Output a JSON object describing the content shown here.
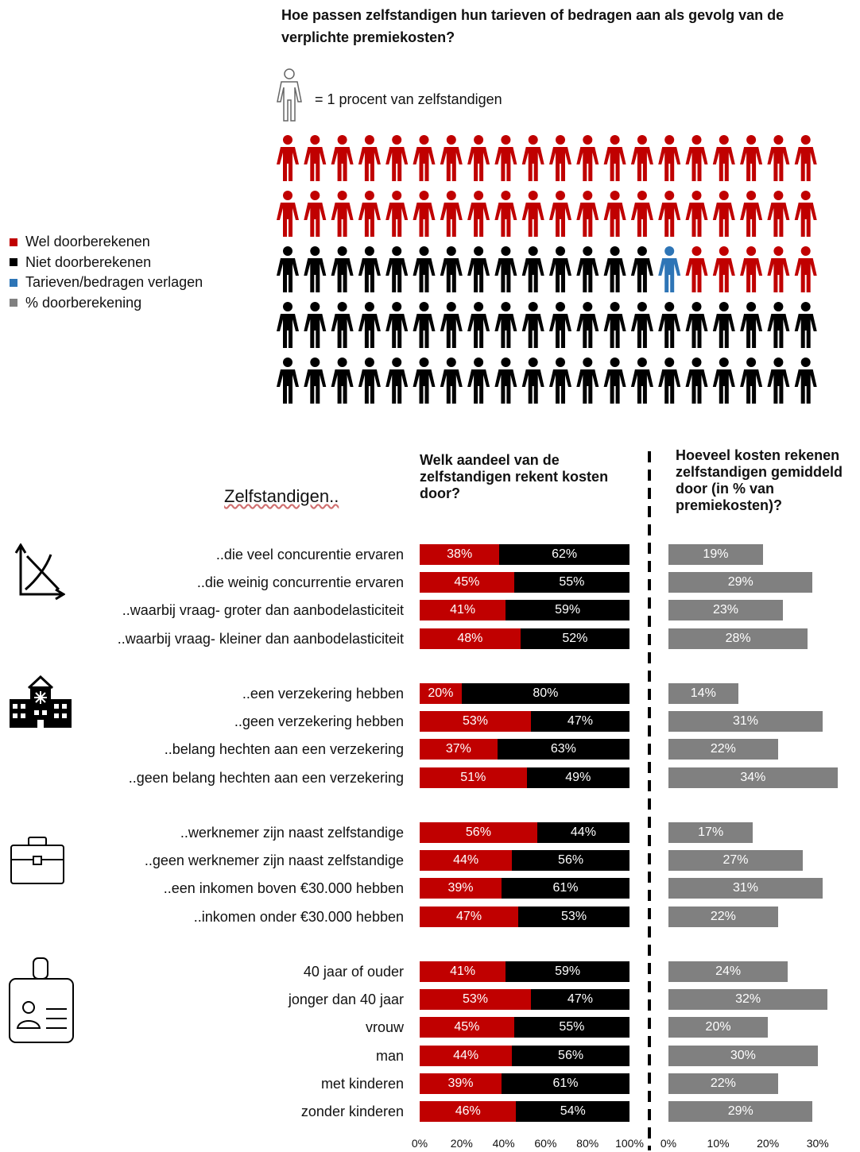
{
  "title": "Hoe passen zelfstandigen hun tarieven of bedragen aan als gevolg van de verplichte premiekosten?",
  "unit_text": "= 1 procent van zelfstandigen",
  "legend": [
    {
      "label": "Wel doorberekenen",
      "color": "#c00000"
    },
    {
      "label": "Niet doorberekenen",
      "color": "#000000"
    },
    {
      "label": "Tarieven/bedragen verlagen",
      "color": "#2e75b6"
    },
    {
      "label": "% doorberekening",
      "color": "#808080"
    }
  ],
  "zelf_label": "Zelfstandigen..",
  "left_header": "Welk aandeel van de zelfstandigen rekent kosten door?",
  "right_header": "Hoeveel kosten rekenen zelfstandigen gemiddeld door (in % van premiekosten)?",
  "colors": {
    "red": "#c00000",
    "black": "#000000",
    "blue": "#2e75b6",
    "gray": "#808080"
  },
  "chart_data": [
    {
      "type": "pictogram",
      "unit": "1 procent van zelfstandigen",
      "counts": {
        "Wel doorberekenen": 45,
        "Niet doorberekenen": 54,
        "Tarieven/bedragen verlagen": 1
      },
      "rows": 5,
      "per_row": 20
    },
    {
      "type": "bar",
      "stacked": true,
      "title": "Welk aandeel van de zelfstandigen rekent kosten door?",
      "categories": [
        "..die veel concurentie ervaren",
        "..die weinig concurrentie ervaren",
        "..waarbij vraag- groter dan aanbodelasticiteit",
        "..waarbij vraag- kleiner dan aanbodelasticiteit",
        "..een verzekering hebben",
        "..geen verzekering hebben",
        "..belang hechten aan een verzekering",
        "..geen belang hechten aan een verzekering",
        "..werknemer zijn naast zelfstandige",
        "..geen werknemer zijn naast zelfstandige",
        "..een inkomen boven €30.000 hebben",
        "..inkomen onder €30.000 hebben",
        "40 jaar of ouder",
        "jonger dan 40 jaar",
        "vrouw",
        "man",
        "met kinderen",
        "zonder kinderen"
      ],
      "series": [
        {
          "name": "Wel doorberekenen",
          "values": [
            38,
            45,
            41,
            48,
            20,
            53,
            37,
            51,
            56,
            44,
            39,
            47,
            41,
            53,
            45,
            44,
            39,
            46
          ]
        },
        {
          "name": "Niet doorberekenen",
          "values": [
            62,
            55,
            59,
            52,
            80,
            47,
            63,
            49,
            44,
            56,
            61,
            53,
            59,
            47,
            55,
            56,
            61,
            54
          ]
        }
      ],
      "xlim": [
        0,
        100
      ],
      "ticks": [
        "0%",
        "20%",
        "40%",
        "60%",
        "80%",
        "100%"
      ]
    },
    {
      "type": "bar",
      "title": "Hoeveel kosten rekenen zelfstandigen gemiddeld door (in % van premiekosten)?",
      "series": [
        {
          "name": "% doorberekening",
          "values": [
            19,
            29,
            23,
            28,
            14,
            31,
            22,
            34,
            17,
            27,
            31,
            22,
            24,
            32,
            20,
            30,
            22,
            29
          ]
        }
      ],
      "xlim": [
        0,
        35
      ],
      "ticks": [
        "0%",
        "10%",
        "20%",
        "30%"
      ]
    }
  ]
}
